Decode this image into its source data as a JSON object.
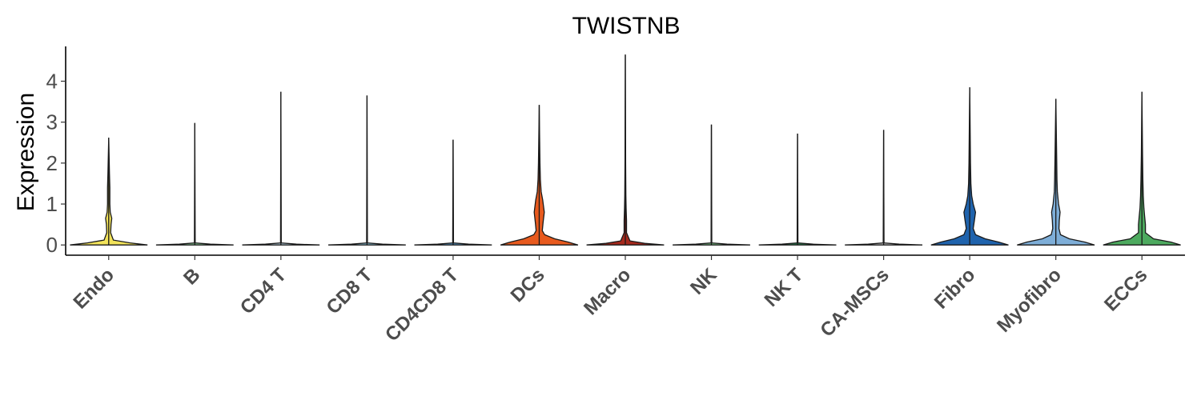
{
  "chart_data": {
    "type": "violin",
    "title": "TWISTNB",
    "xlabel": "",
    "ylabel": "Expression",
    "ylim": [
      -0.25,
      4.85
    ],
    "yticks": [
      0,
      1,
      2,
      3,
      4
    ],
    "grid": false,
    "legend": "none",
    "categories": [
      "Endo",
      "B",
      "CD4 T",
      "CD8 T",
      "CD4CD8 T",
      "DCs",
      "Macro",
      "NK",
      "NK T",
      "CA-MSCs",
      "Fibro",
      "Myofibro",
      "ECCs"
    ],
    "series": [
      {
        "category": "Endo",
        "color": "#f2e35a",
        "max": 2.62,
        "profile": [
          [
            0,
            1.0
          ],
          [
            0.05,
            0.55
          ],
          [
            0.12,
            0.12
          ],
          [
            0.3,
            0.05
          ],
          [
            0.5,
            0.06
          ],
          [
            0.65,
            0.08
          ],
          [
            0.8,
            0.04
          ],
          [
            1.0,
            0.03
          ],
          [
            1.4,
            0.03
          ],
          [
            1.75,
            0.02
          ],
          [
            2.62,
            0.0
          ]
        ]
      },
      {
        "category": "B",
        "color": "#8cd39a",
        "max": 2.98,
        "profile": [
          [
            0,
            1.0
          ],
          [
            0.02,
            0.4
          ],
          [
            0.05,
            0.01
          ],
          [
            2.98,
            0.0
          ]
        ]
      },
      {
        "category": "CD4 T",
        "color": "#bcd8e8",
        "max": 3.74,
        "profile": [
          [
            0,
            1.0
          ],
          [
            0.02,
            0.4
          ],
          [
            0.05,
            0.01
          ],
          [
            3.74,
            0.0
          ]
        ]
      },
      {
        "category": "CD8 T",
        "color": "#90c9e0",
        "max": 3.65,
        "profile": [
          [
            0,
            1.0
          ],
          [
            0.02,
            0.4
          ],
          [
            0.05,
            0.01
          ],
          [
            3.65,
            0.0
          ]
        ]
      },
      {
        "category": "CD4CD8 T",
        "color": "#5a9fd1",
        "max": 2.57,
        "profile": [
          [
            0,
            1.0
          ],
          [
            0.02,
            0.4
          ],
          [
            0.05,
            0.01
          ],
          [
            2.57,
            0.0
          ]
        ]
      },
      {
        "category": "DCs",
        "color": "#e85a1e",
        "max": 3.42,
        "profile": [
          [
            0,
            1.0
          ],
          [
            0.07,
            0.75
          ],
          [
            0.15,
            0.4
          ],
          [
            0.25,
            0.14
          ],
          [
            0.35,
            0.08
          ],
          [
            0.55,
            0.1
          ],
          [
            0.8,
            0.13
          ],
          [
            1.1,
            0.09
          ],
          [
            1.3,
            0.05
          ],
          [
            1.6,
            0.03
          ],
          [
            2.0,
            0.02
          ],
          [
            2.7,
            0.01
          ],
          [
            3.42,
            0.0
          ]
        ]
      },
      {
        "category": "Macro",
        "color": "#a5281c",
        "max": 4.65,
        "profile": [
          [
            0,
            1.0
          ],
          [
            0.04,
            0.5
          ],
          [
            0.1,
            0.12
          ],
          [
            0.3,
            0.03
          ],
          [
            0.6,
            0.03
          ],
          [
            0.9,
            0.02
          ],
          [
            1.2,
            0.015
          ],
          [
            2.0,
            0.008
          ],
          [
            4.65,
            0.0
          ]
        ]
      },
      {
        "category": "NK",
        "color": "#7fc98a",
        "max": 2.94,
        "profile": [
          [
            0,
            1.0
          ],
          [
            0.02,
            0.4
          ],
          [
            0.05,
            0.01
          ],
          [
            2.94,
            0.0
          ]
        ]
      },
      {
        "category": "NK T",
        "color": "#2e8b57",
        "max": 2.72,
        "profile": [
          [
            0,
            1.0
          ],
          [
            0.02,
            0.4
          ],
          [
            0.05,
            0.01
          ],
          [
            2.72,
            0.0
          ]
        ]
      },
      {
        "category": "CA-MSCs",
        "color": "#cfcfcf",
        "max": 2.81,
        "profile": [
          [
            0,
            1.0
          ],
          [
            0.02,
            0.4
          ],
          [
            0.05,
            0.01
          ],
          [
            2.81,
            0.0
          ]
        ]
      },
      {
        "category": "Fibro",
        "color": "#1f63ad",
        "max": 3.85,
        "profile": [
          [
            0,
            1.0
          ],
          [
            0.07,
            0.75
          ],
          [
            0.15,
            0.4
          ],
          [
            0.25,
            0.15
          ],
          [
            0.4,
            0.09
          ],
          [
            0.6,
            0.12
          ],
          [
            0.8,
            0.15
          ],
          [
            1.0,
            0.09
          ],
          [
            1.2,
            0.05
          ],
          [
            1.5,
            0.03
          ],
          [
            2.0,
            0.02
          ],
          [
            3.0,
            0.01
          ],
          [
            3.85,
            0.0
          ]
        ]
      },
      {
        "category": "Myofibro",
        "color": "#7eaed8",
        "max": 3.57,
        "profile": [
          [
            0,
            1.0
          ],
          [
            0.07,
            0.75
          ],
          [
            0.15,
            0.35
          ],
          [
            0.25,
            0.12
          ],
          [
            0.4,
            0.08
          ],
          [
            0.6,
            0.09
          ],
          [
            0.8,
            0.11
          ],
          [
            1.0,
            0.07
          ],
          [
            1.3,
            0.04
          ],
          [
            1.6,
            0.03
          ],
          [
            2.2,
            0.02
          ],
          [
            3.57,
            0.0
          ]
        ]
      },
      {
        "category": "ECCs",
        "color": "#4daa5f",
        "max": 3.74,
        "profile": [
          [
            0,
            1.0
          ],
          [
            0.07,
            0.75
          ],
          [
            0.15,
            0.3
          ],
          [
            0.3,
            0.09
          ],
          [
            0.5,
            0.09
          ],
          [
            0.7,
            0.07
          ],
          [
            0.9,
            0.05
          ],
          [
            1.2,
            0.035
          ],
          [
            1.6,
            0.025
          ],
          [
            2.2,
            0.015
          ],
          [
            3.74,
            0.0
          ]
        ]
      }
    ]
  }
}
